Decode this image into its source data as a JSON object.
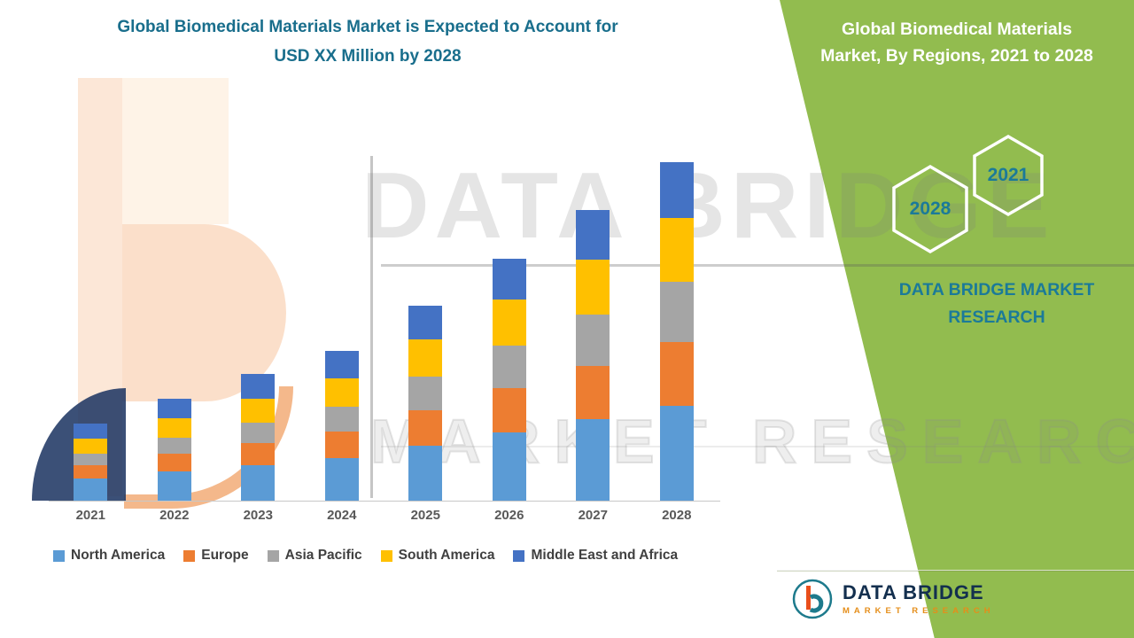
{
  "header": {
    "title_line1": "Global Biomedical Materials Market is Expected to Account for",
    "title_line2": "USD XX Million by 2028",
    "title_color": "#196E8C"
  },
  "right_panel": {
    "panel_color": "#92BC4F",
    "title_line1": "Global Biomedical Materials",
    "title_line2": "Market, By Regions, 2021 to 2028",
    "hexagon_top_label": "2021",
    "hexagon_bottom_label": "2028",
    "brand_line1": "DATA BRIDGE MARKET",
    "brand_line2": "RESEARCH",
    "accent_color": "#1B7A99"
  },
  "watermark": {
    "text1": "DATA BRIDGE",
    "text2": "MARKET RESEARCH"
  },
  "footer_logo": {
    "name": "DATA BRIDGE",
    "subtitle": "MARKET RESEARCH"
  },
  "chart_data": {
    "type": "bar",
    "stacked": true,
    "title": "Global Biomedical Materials Market, By Regions, 2021 to 2028",
    "categories": [
      "2021",
      "2022",
      "2023",
      "2024",
      "2025",
      "2026",
      "2027",
      "2028"
    ],
    "series": [
      {
        "name": "North America",
        "color": "#5B9BD5",
        "values": [
          25,
          33,
          40,
          48,
          62,
          77,
          92,
          107
        ]
      },
      {
        "name": "Europe",
        "color": "#ED7D31",
        "values": [
          15,
          20,
          25,
          30,
          40,
          50,
          60,
          72
        ]
      },
      {
        "name": "Asia Pacific",
        "color": "#A5A5A5",
        "values": [
          13,
          18,
          23,
          28,
          38,
          48,
          58,
          68
        ]
      },
      {
        "name": "South America",
        "color": "#FFC000",
        "values": [
          17,
          22,
          27,
          32,
          42,
          52,
          62,
          72
        ]
      },
      {
        "name": "Middle East and Africa",
        "color": "#4472C4",
        "values": [
          17,
          22,
          28,
          31,
          38,
          46,
          56,
          63
        ]
      }
    ],
    "xlabel": "",
    "ylabel": "",
    "value_note": "Y-axis values not labeled on chart (USD XX Million); series values are relative estimates of bar-segment heights",
    "legend_position": "bottom",
    "grid": false
  }
}
